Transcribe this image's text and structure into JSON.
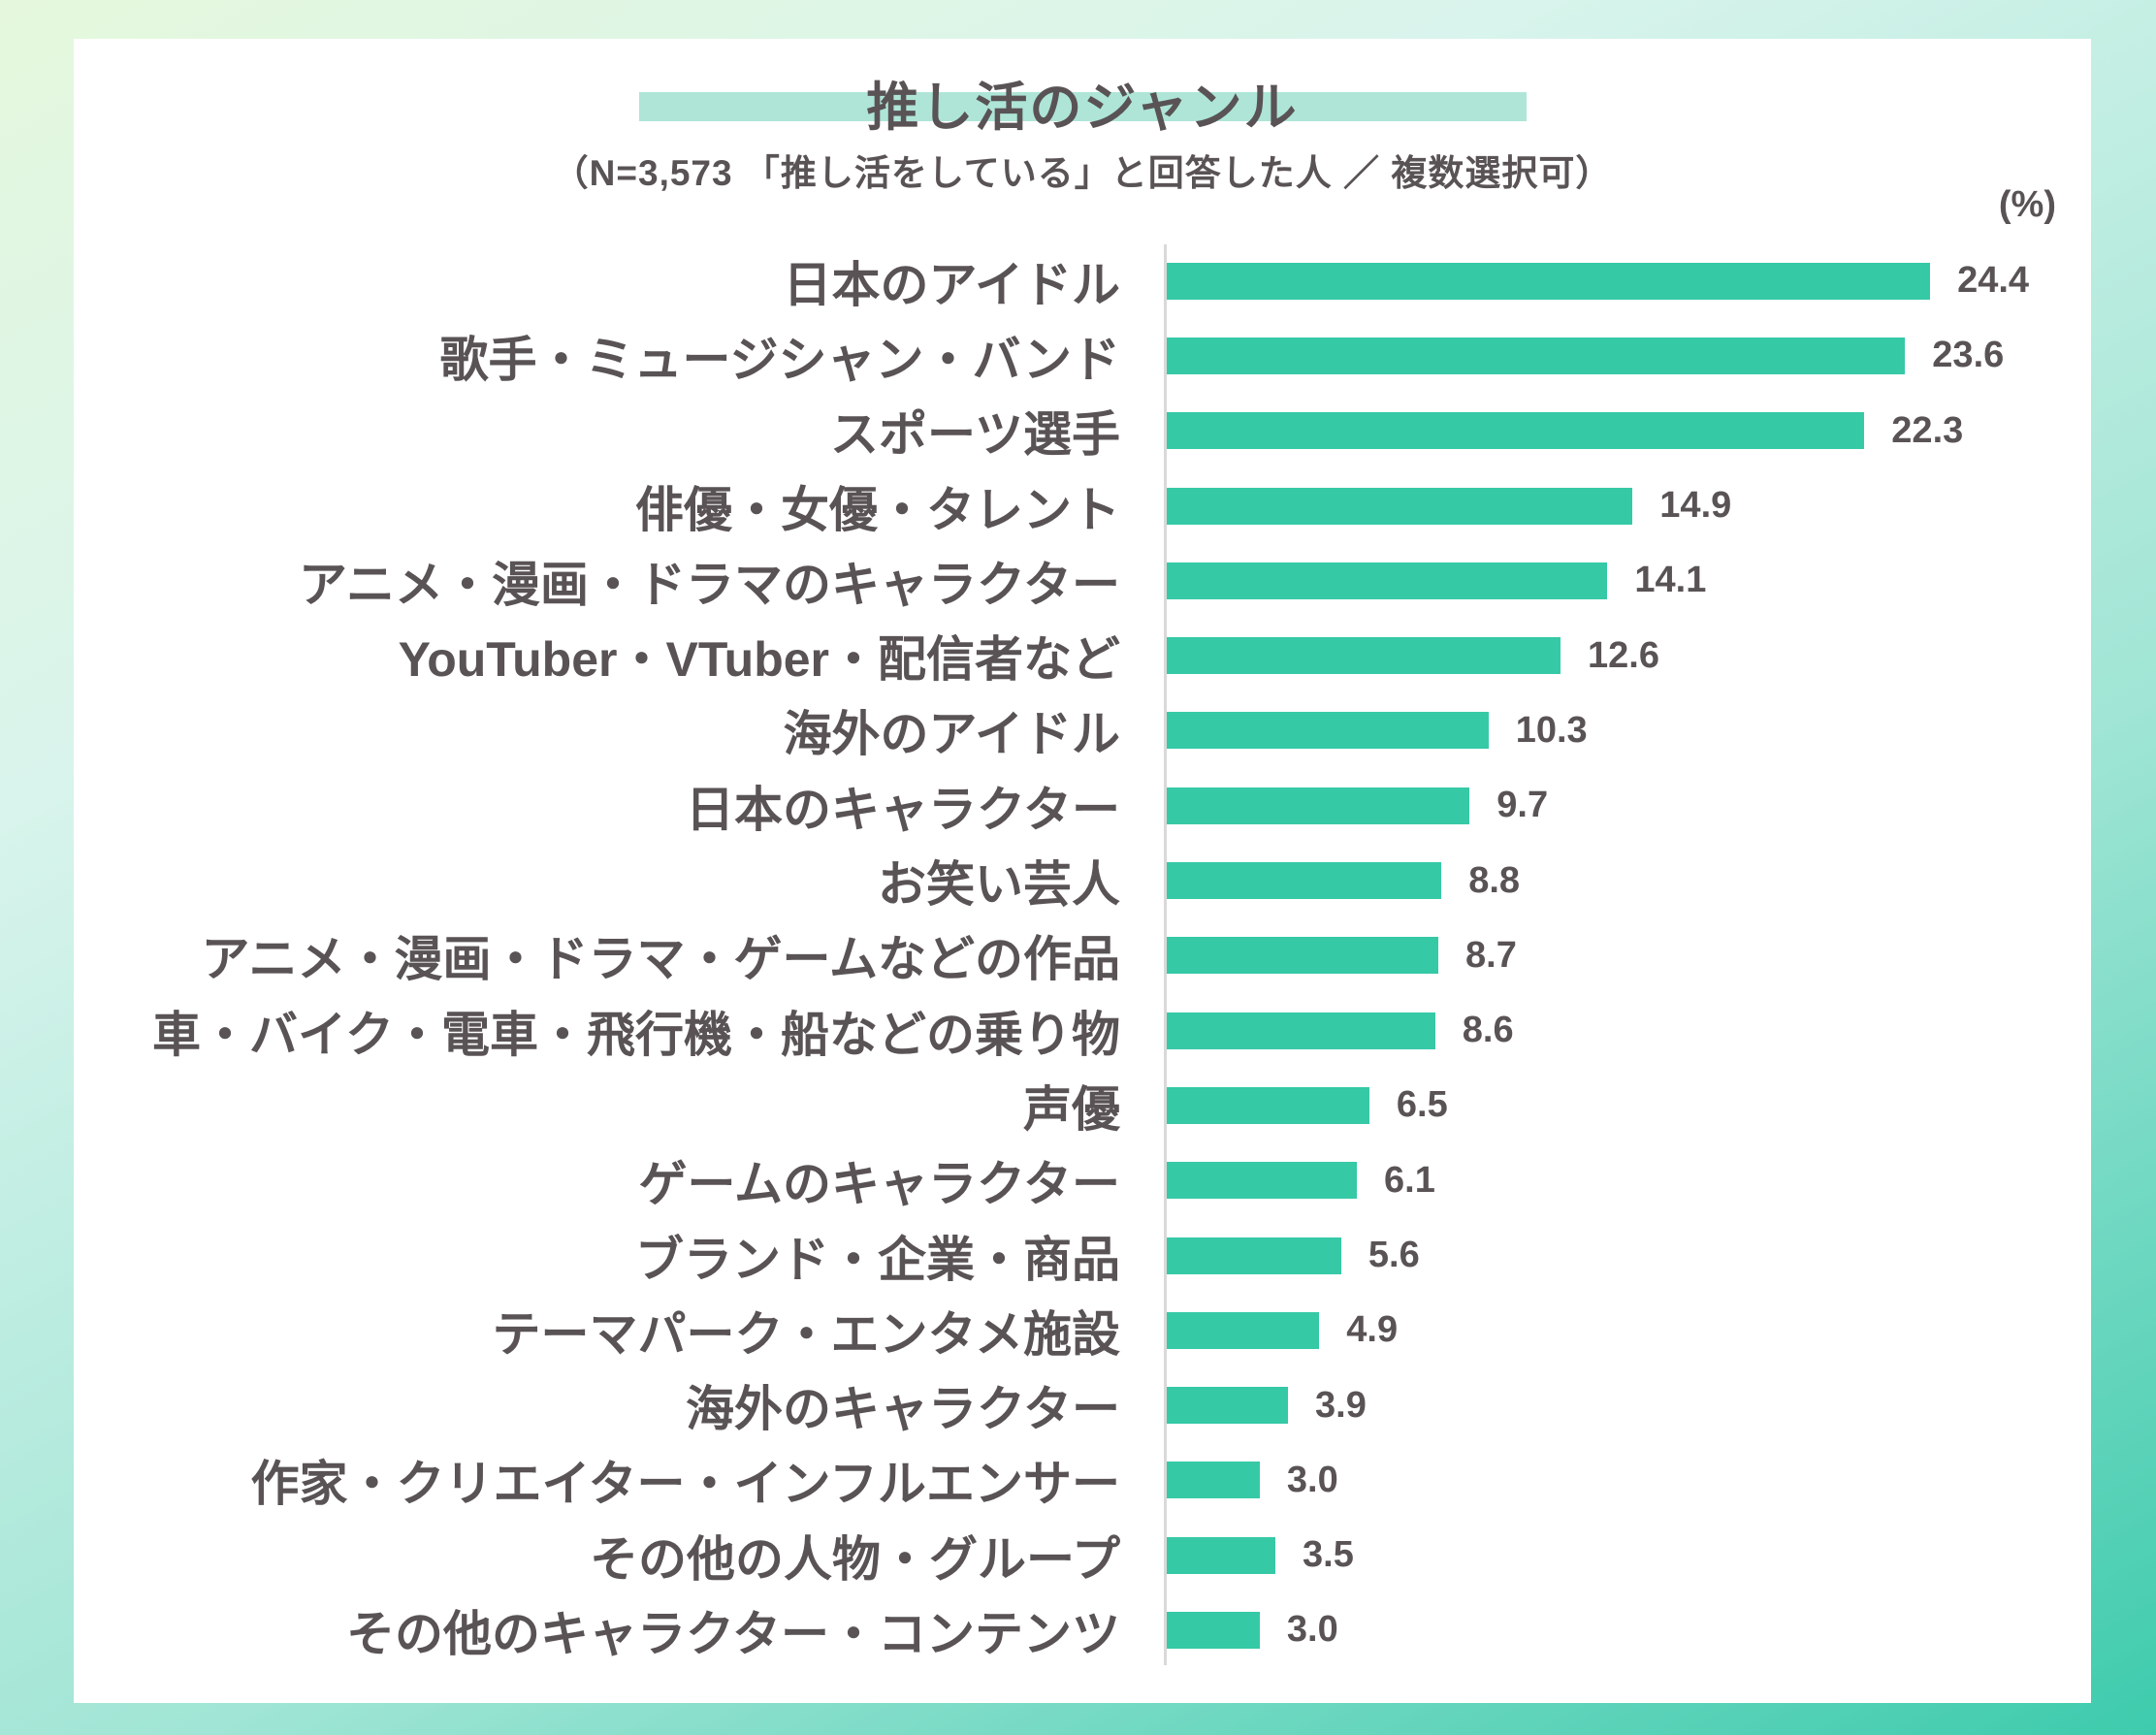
{
  "header": {
    "title": "推し活のジャンル",
    "subtitle": "（N=3,573 「推し活をしている」と回答した人 ／ 複数選択可）"
  },
  "chart": {
    "unit_label": "(%)"
  },
  "colors": {
    "bar": "#36c9a6",
    "title_highlight": "#aee5d7",
    "text": "#595355",
    "axis_line": "#d9d9d9",
    "card_background": "#ffffff",
    "page_gradient_top_left": "#e5f8dd",
    "page_gradient_bottom_right": "#3ecbad"
  },
  "chart_data": {
    "type": "bar",
    "orientation": "horizontal",
    "title": "推し活のジャンル",
    "subtitle": "（N=3,573 「推し活をしている」と回答した人 ／ 複数選択可）",
    "unit": "%",
    "xlim": [
      0,
      25.5
    ],
    "grid": false,
    "legend": false,
    "value_labels": "outside-end",
    "categories": [
      "日本のアイドル",
      "歌手・ミュージシャン・バンド",
      "スポーツ選手",
      "俳優・女優・タレント",
      "アニメ・漫画・ドラマのキャラクター",
      "YouTuber・VTuber・配信者など",
      "海外のアイドル",
      "日本のキャラクター",
      "お笑い芸人",
      "アニメ・漫画・ドラマ・ゲームなどの作品",
      "車・バイク・電車・飛行機・船などの乗り物",
      "声優",
      "ゲームのキャラクター",
      "ブランド・企業・商品",
      "テーマパーク・エンタメ施設",
      "海外のキャラクター",
      "作家・クリエイター・インフルエンサー",
      "その他の人物・グループ",
      "その他のキャラクター・コンテンツ"
    ],
    "values": [
      24.4,
      23.6,
      22.3,
      14.9,
      14.1,
      12.6,
      10.3,
      9.7,
      8.8,
      8.7,
      8.6,
      6.5,
      6.1,
      5.6,
      4.9,
      3.9,
      3.0,
      3.5,
      3.0
    ]
  }
}
